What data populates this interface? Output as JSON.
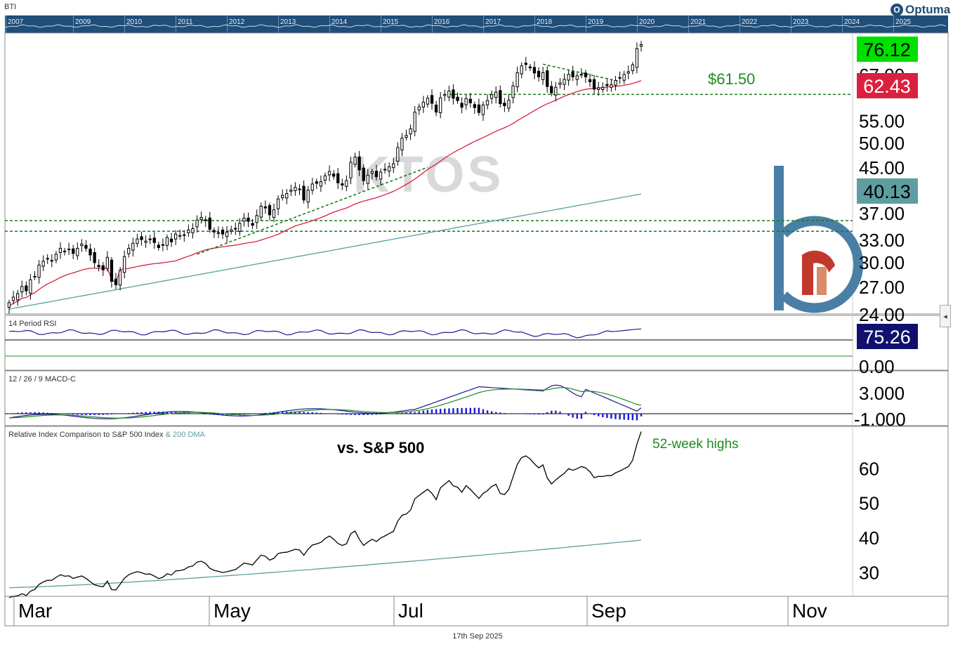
{
  "header": {
    "symbol_code": "BTI",
    "brand": "Optuma",
    "timeline_years": [
      "2007",
      "2009",
      "2010",
      "2011",
      "2012",
      "2013",
      "2014",
      "2015",
      "2016",
      "2017",
      "2018",
      "2019",
      "2020",
      "2021",
      "2022",
      "2023",
      "2024",
      "2025"
    ]
  },
  "footer": {
    "date": "17th Sep 2025"
  },
  "watermark": "KTOS",
  "colors": {
    "up_label": "#00e000",
    "ma50": "#d9213f",
    "ma200": "#5e9ea0",
    "rsi_line": "#1b1b8f",
    "rsi_label_bg": "#10106e",
    "macd_hist": "#1a1adb",
    "signal": "#1f8b1f",
    "level_line": "#1a7a1a",
    "brand_blue": "#4a7fa5",
    "brand_red": "#c0392b"
  },
  "chart_data": [
    {
      "type": "candlestick",
      "panel": "price",
      "ticker": "KTOS",
      "x_axis_labels": [
        "Mar",
        "May",
        "Jul",
        "Sep",
        "Nov"
      ],
      "y_ticks": [
        "67.00",
        "55.00",
        "50.00",
        "45.00",
        "37.00",
        "33.00",
        "30.00",
        "27.00",
        "24.00"
      ],
      "y_scale": "log",
      "ylim": [
        24,
        80
      ],
      "last_close": "76.12",
      "ma50_value": "62.43",
      "ma200_value": "40.13",
      "annotation": "$61.50",
      "horizontal_levels": [
        61.5,
        35.8,
        34.2
      ],
      "series": [
        {
          "name": "close",
          "values": [
            25.2,
            25.8,
            26.2,
            27.0,
            26.5,
            27.8,
            28.2,
            29.6,
            30.1,
            30.4,
            30.2,
            31.0,
            31.8,
            31.4,
            31.7,
            31.1,
            31.8,
            32.4,
            31.8,
            30.9,
            29.9,
            29.4,
            29.0,
            30.6,
            27.6,
            27.2,
            28.9,
            30.7,
            31.8,
            32.5,
            33.1,
            33.0,
            32.8,
            33.1,
            32.6,
            31.9,
            32.3,
            33.3,
            32.7,
            33.8,
            33.6,
            33.7,
            34.4,
            34.6,
            35.9,
            36.3,
            35.8,
            34.5,
            34.1,
            34.0,
            33.8,
            34.1,
            34.4,
            34.6,
            35.4,
            36.2,
            35.7,
            35.1,
            36.6,
            38.1,
            37.8,
            36.7,
            37.5,
            39.3,
            39.9,
            40.2,
            40.8,
            41.3,
            41.0,
            39.1,
            40.8,
            41.9,
            42.0,
            42.3,
            43.4,
            44.2,
            43.3,
            42.1,
            41.7,
            42.5,
            46.0,
            47.0,
            44.5,
            42.5,
            43.5,
            44.2,
            43.2,
            44.1,
            44.5,
            45.1,
            45.7,
            49.0,
            51.0,
            51.6,
            53.1,
            57.0,
            58.3,
            59.5,
            60.5,
            59.2,
            57.0,
            60.6,
            61.5,
            62.4,
            60.5,
            59.9,
            58.2,
            60.4,
            59.3,
            58.1,
            56.9,
            58.8,
            59.9,
            61.4,
            62.1,
            59.1,
            58.6,
            60.0,
            63.8,
            67.5,
            69.5,
            69.9,
            68.9,
            67.4,
            66.3,
            67.5,
            63.6,
            61.9,
            63.4,
            64.6,
            65.6,
            67.0,
            66.3,
            66.6,
            67.0,
            66.3,
            64.9,
            62.9,
            63.3,
            63.4,
            63.9,
            64.1,
            65.3,
            66.1,
            67.0,
            67.8,
            69.8,
            74.8,
            76.1
          ]
        }
      ]
    },
    {
      "type": "line",
      "panel": "rsi",
      "title": "14 Period RSI",
      "y_ticks": [
        "0.00"
      ],
      "last_value": "75.26",
      "levels": [
        70,
        30
      ]
    },
    {
      "type": "line",
      "panel": "macd",
      "title": "12 / 26 / 9 MACD-C",
      "y_ticks": [
        "3.000",
        "-1.000"
      ],
      "series_names": [
        "MACD",
        "Signal",
        "Histogram"
      ]
    },
    {
      "type": "line",
      "panel": "relative",
      "title": "Relative Index Comparison to S&P 500 Index",
      "title_suffix": "& 200 DMA",
      "inner_label": "vs. S&P 500",
      "annotation": "52-week highs",
      "y_ticks": [
        "60",
        "50",
        "40",
        "30"
      ],
      "ylim": [
        23,
        72
      ],
      "dma_start": 25.5,
      "dma_end": 39.2
    }
  ]
}
